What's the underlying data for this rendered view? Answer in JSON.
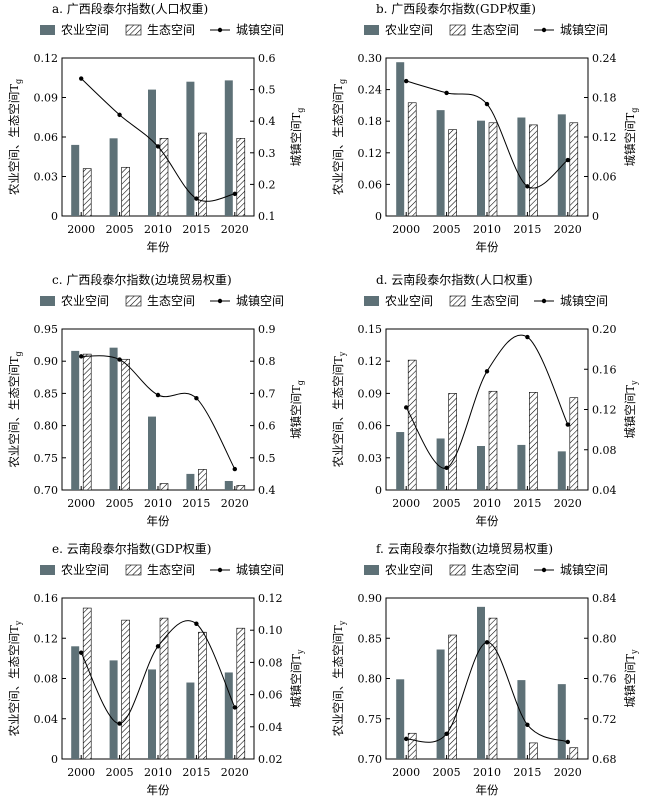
{
  "legend_labels": {
    "agri": "农业空间",
    "eco": "生态空间",
    "urban": "城镇空间"
  },
  "colors": {
    "agri_bar": "#5e7177",
    "hatch": "#000000",
    "line": "#000000"
  },
  "chart_data": [
    {
      "type": "bar",
      "title": "a. 广西段泰尔指数(人口权重)",
      "categories": [
        "2000",
        "2005",
        "2010",
        "2015",
        "2020"
      ],
      "xlabel": "年份",
      "ylabel": "农业空间、生态空间T",
      "ylabel_sub": "g",
      "y2label": "城镇空间T",
      "y2label_sub": "g",
      "ylim": [
        0,
        0.12
      ],
      "yticks": [
        "0",
        "0.03",
        "0.06",
        "0.09",
        "0.12"
      ],
      "y2lim": [
        0.1,
        0.6
      ],
      "y2ticks": [
        "0.1",
        "0.2",
        "0.3",
        "0.4",
        "0.5",
        "0.6"
      ],
      "series": [
        {
          "name": "农业空间",
          "axis": "left",
          "style": "bar-solid",
          "values": [
            0.054,
            0.059,
            0.096,
            0.102,
            0.103
          ]
        },
        {
          "name": "生态空间",
          "axis": "left",
          "style": "bar-hatch",
          "values": [
            0.036,
            0.037,
            0.059,
            0.063,
            0.059
          ]
        },
        {
          "name": "城镇空间",
          "axis": "right",
          "style": "line-smooth",
          "values": [
            0.535,
            0.42,
            0.32,
            0.155,
            0.17
          ]
        }
      ]
    },
    {
      "type": "bar",
      "title": "b. 广西段泰尔指数(GDP权重)",
      "categories": [
        "2000",
        "2005",
        "2010",
        "2015",
        "2020"
      ],
      "xlabel": "年份",
      "ylabel": "农业空间、生态空间T",
      "ylabel_sub": "g",
      "y2label": "城镇空间T",
      "y2label_sub": "g",
      "ylim": [
        0,
        0.3
      ],
      "yticks": [
        "0",
        "0.06",
        "0.12",
        "0.18",
        "0.24",
        "0.30"
      ],
      "y2lim": [
        0,
        0.24
      ],
      "y2ticks": [
        "0",
        "0.06",
        "0.12",
        "0.18",
        "0.24"
      ],
      "series": [
        {
          "name": "农业空间",
          "axis": "left",
          "style": "bar-solid",
          "values": [
            0.292,
            0.201,
            0.181,
            0.187,
            0.193
          ]
        },
        {
          "name": "生态空间",
          "axis": "left",
          "style": "bar-hatch",
          "values": [
            0.215,
            0.164,
            0.177,
            0.173,
            0.177
          ]
        },
        {
          "name": "城镇空间",
          "axis": "right",
          "style": "line-smooth",
          "values": [
            0.205,
            0.187,
            0.17,
            0.045,
            0.085
          ]
        }
      ]
    },
    {
      "type": "bar",
      "title": "c. 广西段泰尔指数(边境贸易权重)",
      "categories": [
        "2000",
        "2005",
        "2010",
        "2015",
        "2020"
      ],
      "xlabel": "年份",
      "ylabel": "农业空间、生态空间T",
      "ylabel_sub": "g",
      "y2label": "城镇空间T",
      "y2label_sub": "g",
      "ylim": [
        0.7,
        0.95
      ],
      "yticks": [
        "0.70",
        "0.75",
        "0.80",
        "0.85",
        "0.90",
        "0.95"
      ],
      "y2lim": [
        0.4,
        0.9
      ],
      "y2ticks": [
        "0.4",
        "0.5",
        "0.6",
        "0.7",
        "0.8",
        "0.9"
      ],
      "series": [
        {
          "name": "农业空间",
          "axis": "left",
          "style": "bar-solid",
          "values": [
            0.916,
            0.921,
            0.814,
            0.725,
            0.714
          ]
        },
        {
          "name": "生态空间",
          "axis": "left",
          "style": "bar-hatch",
          "values": [
            0.911,
            0.903,
            0.71,
            0.732,
            0.707
          ]
        },
        {
          "name": "城镇空间",
          "axis": "right",
          "style": "line-smooth",
          "values": [
            0.815,
            0.805,
            0.695,
            0.685,
            0.465
          ]
        }
      ]
    },
    {
      "type": "bar",
      "title": "d. 云南段泰尔指数(人口权重)",
      "categories": [
        "2000",
        "2005",
        "2010",
        "2015",
        "2020"
      ],
      "xlabel": "年份",
      "ylabel": "农业空间、生态空间T",
      "ylabel_sub": "y",
      "y2label": "城镇空间T",
      "y2label_sub": "y",
      "ylim": [
        0,
        0.15
      ],
      "yticks": [
        "0",
        "0.03",
        "0.06",
        "0.09",
        "0.12",
        "0.15"
      ],
      "y2lim": [
        0.04,
        0.2
      ],
      "y2ticks": [
        "0.04",
        "0.08",
        "0.12",
        "0.16",
        "0.20"
      ],
      "series": [
        {
          "name": "农业空间",
          "axis": "left",
          "style": "bar-solid",
          "values": [
            0.054,
            0.048,
            0.041,
            0.042,
            0.036
          ]
        },
        {
          "name": "生态空间",
          "axis": "left",
          "style": "bar-hatch",
          "values": [
            0.121,
            0.09,
            0.092,
            0.091,
            0.086
          ]
        },
        {
          "name": "城镇空间",
          "axis": "right",
          "style": "line-smooth",
          "values": [
            0.122,
            0.062,
            0.158,
            0.192,
            0.105
          ]
        }
      ]
    },
    {
      "type": "bar",
      "title": "e. 云南段泰尔指数(GDP权重)",
      "categories": [
        "2000",
        "2005",
        "2010",
        "2015",
        "2020"
      ],
      "xlabel": "年份",
      "ylabel": "农业空间、生态空间T",
      "ylabel_sub": "y",
      "y2label": "城镇空间T",
      "y2label_sub": "y",
      "ylim": [
        0,
        0.16
      ],
      "yticks": [
        "0",
        "0.04",
        "0.08",
        "0.12",
        "0.16"
      ],
      "y2lim": [
        0.02,
        0.12
      ],
      "y2ticks": [
        "0.02",
        "0.04",
        "0.06",
        "0.08",
        "0.10",
        "0.12"
      ],
      "series": [
        {
          "name": "农业空间",
          "axis": "left",
          "style": "bar-solid",
          "values": [
            0.112,
            0.098,
            0.089,
            0.076,
            0.086
          ]
        },
        {
          "name": "生态空间",
          "axis": "left",
          "style": "bar-hatch",
          "values": [
            0.15,
            0.138,
            0.14,
            0.126,
            0.13
          ]
        },
        {
          "name": "城镇空间",
          "axis": "right",
          "style": "line-smooth",
          "values": [
            0.086,
            0.042,
            0.09,
            0.104,
            0.052
          ]
        }
      ]
    },
    {
      "type": "bar",
      "title": "f. 云南段泰尔指数(边境贸易权重)",
      "categories": [
        "2000",
        "2005",
        "2010",
        "2015",
        "2020"
      ],
      "xlabel": "年份",
      "ylabel": "农业空间、生态空间T",
      "ylabel_sub": "y",
      "y2label": "城镇空间T",
      "y2label_sub": "y",
      "ylim": [
        0.7,
        0.9
      ],
      "yticks": [
        "0.70",
        "0.75",
        "0.80",
        "0.85",
        "0.90"
      ],
      "y2lim": [
        0.68,
        0.84
      ],
      "y2ticks": [
        "0.68",
        "0.72",
        "0.76",
        "0.80",
        "0.84"
      ],
      "series": [
        {
          "name": "农业空间",
          "axis": "left",
          "style": "bar-solid",
          "values": [
            0.799,
            0.836,
            0.889,
            0.798,
            0.793
          ]
        },
        {
          "name": "生态空间",
          "axis": "left",
          "style": "bar-hatch",
          "values": [
            0.732,
            0.854,
            0.875,
            0.72,
            0.714
          ]
        },
        {
          "name": "城镇空间",
          "axis": "right",
          "style": "line-smooth",
          "values": [
            0.7,
            0.705,
            0.796,
            0.714,
            0.697
          ]
        }
      ]
    }
  ]
}
